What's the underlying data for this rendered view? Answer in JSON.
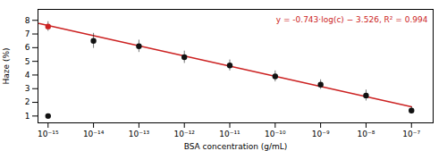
{
  "chart_data": {
    "type": "scatter",
    "xlabel": "BSA concentration (g/mL)",
    "ylabel": "Haze (%)",
    "log": "x",
    "grid": false,
    "xlim": [
      6e-16,
      3e-07
    ],
    "xticks": [
      {
        "value": 1e-15,
        "label": "10⁻¹⁵"
      },
      {
        "value": 1e-14,
        "label": "10⁻¹⁴"
      },
      {
        "value": 1e-13,
        "label": "10⁻¹³"
      },
      {
        "value": 1e-12,
        "label": "10⁻¹²"
      },
      {
        "value": 1e-11,
        "label": "10⁻¹¹"
      },
      {
        "value": 1e-10,
        "label": "10⁻¹⁰"
      },
      {
        "value": 1e-09,
        "label": "10⁻⁹"
      },
      {
        "value": 1e-08,
        "label": "10⁻⁸"
      },
      {
        "value": 1e-07,
        "label": "10⁻⁷"
      }
    ],
    "ylim": [
      0.5,
      8.8
    ],
    "yticks": [
      1,
      2,
      3,
      4,
      5,
      6,
      7,
      8
    ],
    "annotations": [
      {
        "text": "y = -0.743·log(c) − 3.526, R² = 0.994",
        "color": "#cc2222"
      }
    ],
    "series": [
      {
        "type": "line",
        "color": "#cc2222",
        "x": [
          6.309573444801929e-16,
          1e-07
        ],
        "values": [
          7.7676,
          1.675
        ]
      },
      {
        "type": "scatter",
        "color": "#111111",
        "x": [
          1e-15
        ],
        "values": [
          1.0
        ],
        "errors": [
          0.12
        ]
      },
      {
        "type": "scatter",
        "colors": [
          "#cc2222",
          "#111111",
          "#111111",
          "#111111",
          "#111111",
          "#111111",
          "#111111",
          "#111111",
          "#111111"
        ],
        "x": [
          1e-15,
          1e-14,
          1e-13,
          1e-12,
          1e-11,
          1e-10,
          1e-09,
          1e-08,
          1e-07
        ],
        "values": [
          7.55,
          6.5,
          6.1,
          5.3,
          4.7,
          3.9,
          3.3,
          2.5,
          1.4
        ],
        "errors": [
          0.35,
          0.55,
          0.45,
          0.45,
          0.4,
          0.4,
          0.35,
          0.4,
          0.25
        ]
      }
    ]
  }
}
